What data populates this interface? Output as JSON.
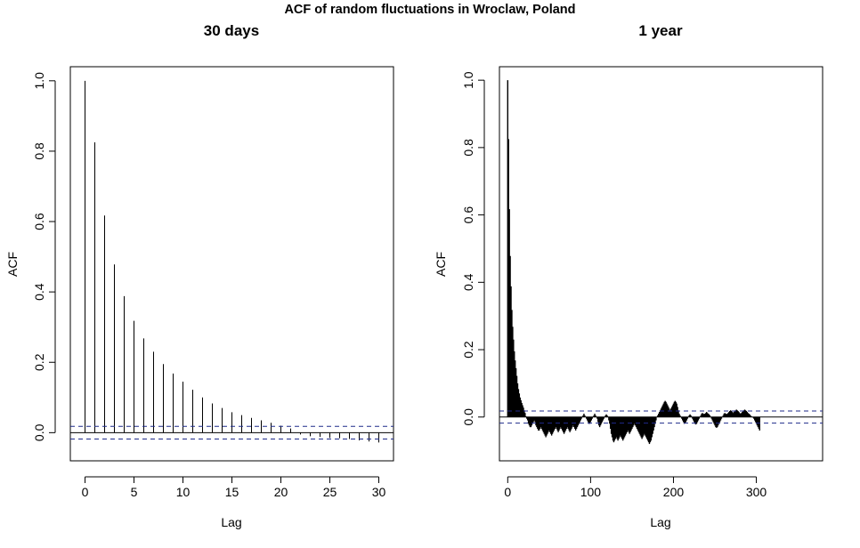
{
  "figure": {
    "title": "ACF of random fluctuations in Wroclaw, Poland"
  },
  "chart_data": [
    {
      "type": "bar",
      "title": "30 days",
      "xlabel": "Lag",
      "ylabel": "ACF",
      "xlim": [
        -1.5,
        31.5
      ],
      "ylim": [
        -0.08,
        1.04
      ],
      "xticks": [
        0,
        5,
        10,
        15,
        20,
        25,
        30
      ],
      "yticks": [
        "0.0",
        "0.2",
        "0.4",
        "0.6",
        "0.8",
        "1.0"
      ],
      "grid": false,
      "zero_line": true,
      "confidence_bound": 0.018,
      "series": [
        {
          "x": [
            0,
            1,
            2,
            3,
            4,
            5,
            6,
            7,
            8,
            9,
            10,
            11,
            12,
            13,
            14,
            15,
            16,
            17,
            18,
            19,
            20,
            21,
            22,
            23,
            24,
            25,
            26,
            27,
            28,
            29,
            30
          ],
          "values": [
            1.0,
            0.825,
            0.617,
            0.478,
            0.388,
            0.318,
            0.268,
            0.23,
            0.195,
            0.168,
            0.145,
            0.122,
            0.1,
            0.083,
            0.07,
            0.058,
            0.05,
            0.042,
            0.035,
            0.028,
            0.02,
            0.012,
            -0.005,
            -0.01,
            -0.012,
            -0.015,
            -0.016,
            -0.018,
            -0.022,
            -0.025,
            -0.028
          ]
        }
      ]
    },
    {
      "type": "bar",
      "title": "1 year",
      "xlabel": "Lag",
      "ylabel": "ACF",
      "xlim": [
        -10,
        380
      ],
      "ylim": [
        -0.13,
        1.04
      ],
      "xticks": [
        0,
        100,
        200,
        300
      ],
      "yticks": [
        "0.0",
        "0.2",
        "0.4",
        "0.6",
        "0.8",
        "1.0"
      ],
      "grid": false,
      "zero_line": true,
      "confidence_bound": 0.018,
      "series": [
        {
          "x_start": 0,
          "x_step": 1,
          "values": [
            1.0,
            0.825,
            0.617,
            0.478,
            0.388,
            0.318,
            0.268,
            0.23,
            0.195,
            0.168,
            0.145,
            0.122,
            0.1,
            0.083,
            0.07,
            0.058,
            0.05,
            0.042,
            0.035,
            0.028,
            0.02,
            0.012,
            0.002,
            -0.005,
            -0.01,
            -0.02,
            -0.025,
            -0.03,
            -0.03,
            -0.025,
            -0.02,
            -0.015,
            -0.01,
            -0.015,
            -0.025,
            -0.03,
            -0.035,
            -0.04,
            -0.04,
            -0.035,
            -0.03,
            -0.035,
            -0.04,
            -0.045,
            -0.05,
            -0.055,
            -0.06,
            -0.055,
            -0.05,
            -0.045,
            -0.04,
            -0.045,
            -0.05,
            -0.055,
            -0.05,
            -0.045,
            -0.04,
            -0.035,
            -0.03,
            -0.035,
            -0.04,
            -0.045,
            -0.04,
            -0.035,
            -0.03,
            -0.035,
            -0.04,
            -0.045,
            -0.05,
            -0.045,
            -0.04,
            -0.035,
            -0.03,
            -0.035,
            -0.04,
            -0.045,
            -0.04,
            -0.035,
            -0.03,
            -0.025,
            -0.03,
            -0.035,
            -0.04,
            -0.035,
            -0.03,
            -0.025,
            -0.02,
            -0.015,
            -0.01,
            -0.005,
            0.0,
            0.005,
            0.01,
            0.005,
            0.0,
            -0.005,
            -0.01,
            -0.015,
            -0.02,
            -0.02,
            -0.015,
            -0.01,
            -0.005,
            0.0,
            0.005,
            0.01,
            0.005,
            0.0,
            -0.005,
            -0.015,
            -0.025,
            -0.03,
            -0.025,
            -0.02,
            -0.015,
            -0.01,
            -0.005,
            0.0,
            0.005,
            0.008,
            0.005,
            0.0,
            -0.01,
            -0.02,
            -0.035,
            -0.05,
            -0.06,
            -0.07,
            -0.075,
            -0.07,
            -0.065,
            -0.06,
            -0.065,
            -0.07,
            -0.065,
            -0.06,
            -0.055,
            -0.06,
            -0.065,
            -0.07,
            -0.065,
            -0.06,
            -0.055,
            -0.05,
            -0.045,
            -0.04,
            -0.045,
            -0.05,
            -0.045,
            -0.04,
            -0.035,
            -0.03,
            -0.025,
            -0.02,
            -0.025,
            -0.03,
            -0.035,
            -0.04,
            -0.045,
            -0.05,
            -0.055,
            -0.06,
            -0.065,
            -0.06,
            -0.055,
            -0.05,
            -0.055,
            -0.06,
            -0.065,
            -0.07,
            -0.075,
            -0.08,
            -0.075,
            -0.07,
            -0.06,
            -0.05,
            -0.04,
            -0.03,
            -0.02,
            -0.01,
            0.0,
            0.005,
            0.01,
            0.015,
            0.02,
            0.025,
            0.03,
            0.035,
            0.04,
            0.045,
            0.048,
            0.045,
            0.04,
            0.035,
            0.03,
            0.025,
            0.02,
            0.025,
            0.03,
            0.035,
            0.04,
            0.045,
            0.048,
            0.045,
            0.04,
            0.03,
            0.02,
            0.01,
            0.005,
            0.0,
            -0.005,
            -0.01,
            -0.015,
            -0.02,
            -0.018,
            -0.015,
            -0.01,
            -0.005,
            0.0,
            0.005,
            0.008,
            0.005,
            0.0,
            -0.005,
            -0.01,
            -0.015,
            -0.02,
            -0.022,
            -0.02,
            -0.015,
            -0.01,
            -0.005,
            0.0,
            0.005,
            0.01,
            0.012,
            0.01,
            0.008,
            0.01,
            0.012,
            0.015,
            0.012,
            0.01,
            0.008,
            0.005,
            0.0,
            -0.005,
            -0.01,
            -0.015,
            -0.02,
            -0.025,
            -0.03,
            -0.032,
            -0.03,
            -0.025,
            -0.02,
            -0.015,
            -0.01,
            -0.005,
            0.0,
            0.005,
            0.01,
            0.012,
            0.01,
            0.008,
            0.01,
            0.012,
            0.015,
            0.018,
            0.02,
            0.018,
            0.015,
            0.012,
            0.015,
            0.018,
            0.02,
            0.022,
            0.02,
            0.018,
            0.015,
            0.012,
            0.01,
            0.012,
            0.015,
            0.018,
            0.02,
            0.022,
            0.02,
            0.018,
            0.015,
            0.012,
            0.01,
            0.008,
            0.005,
            0.002,
            0.0,
            -0.002,
            -0.005,
            -0.01,
            -0.015,
            -0.02,
            -0.025,
            -0.03,
            -0.035,
            -0.04
          ]
        }
      ]
    }
  ]
}
